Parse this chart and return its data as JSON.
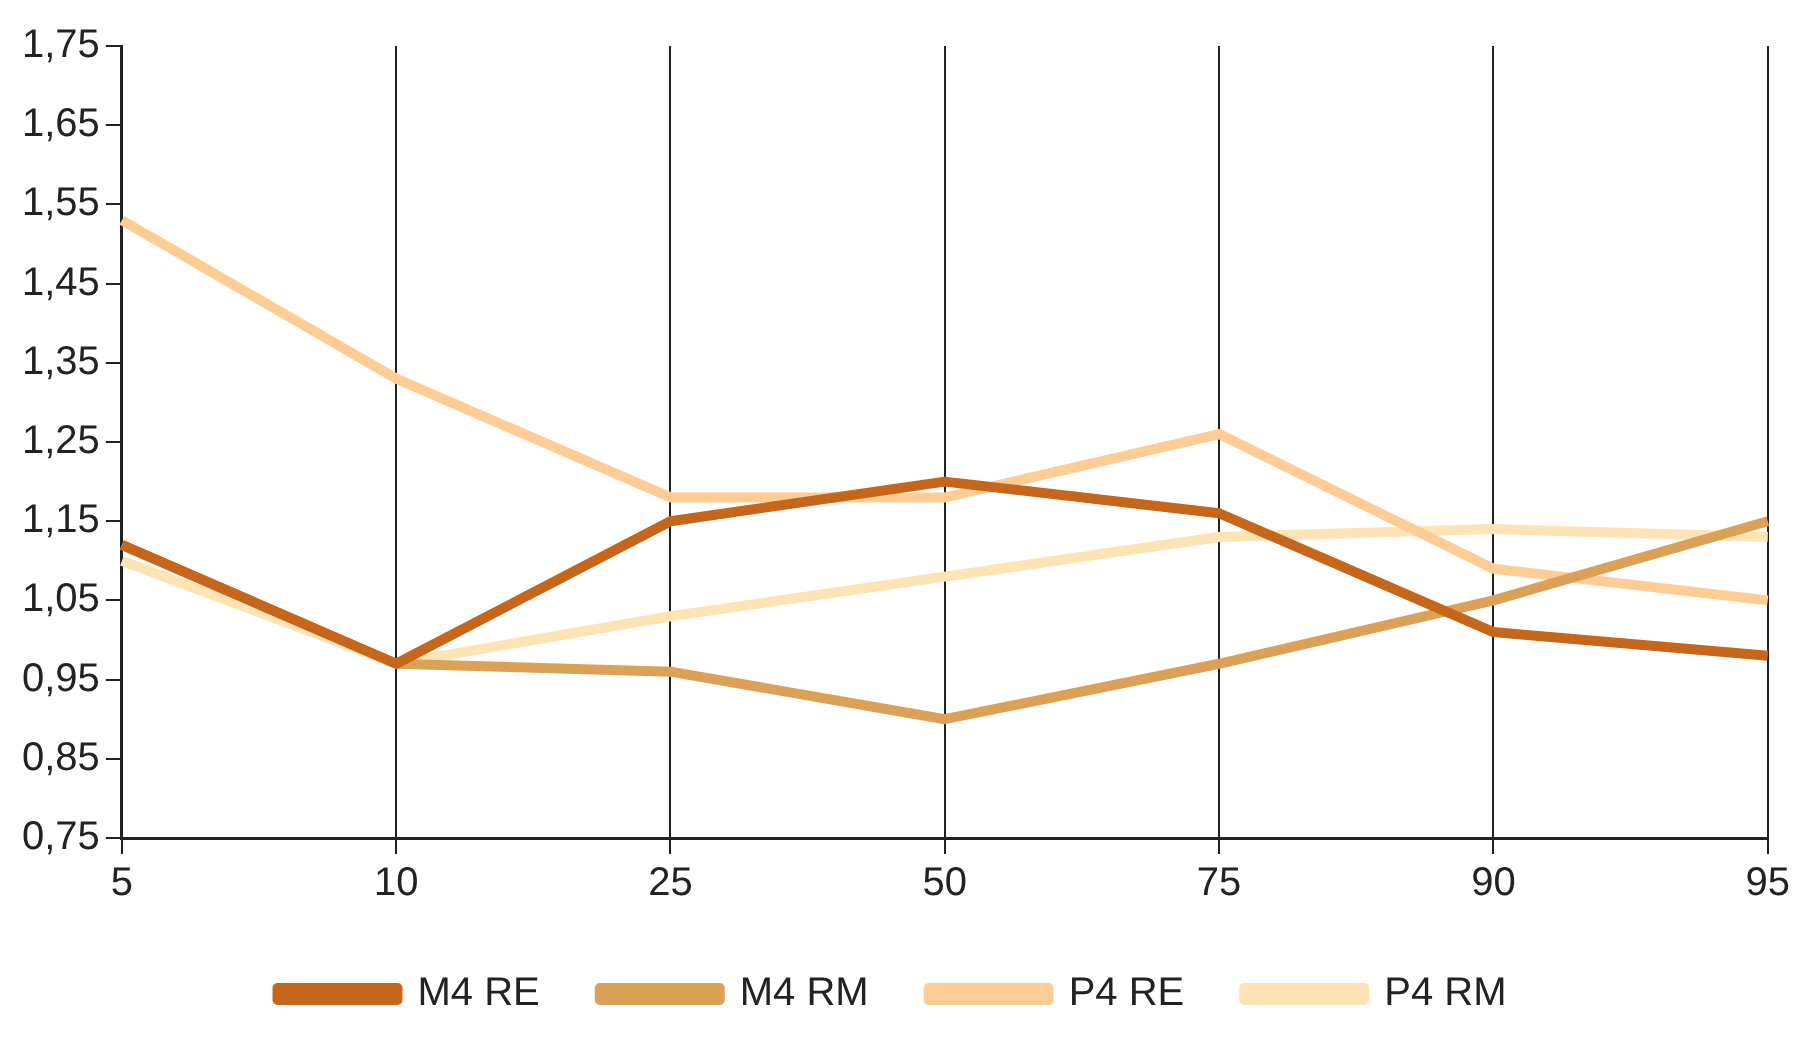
{
  "chart_data": {
    "type": "line",
    "categories": [
      "5",
      "10",
      "25",
      "50",
      "75",
      "90",
      "95"
    ],
    "series": [
      {
        "name": "M4 RE",
        "color": "#c5661a",
        "values": [
          1.12,
          0.97,
          1.15,
          1.2,
          1.16,
          1.01,
          0.98
        ]
      },
      {
        "name": "M4 RM",
        "color": "#dba257",
        "values": [
          1.12,
          0.97,
          0.96,
          0.9,
          0.97,
          1.05,
          1.15
        ]
      },
      {
        "name": "P4 RE",
        "color": "#fecd96",
        "values": [
          1.53,
          1.33,
          1.18,
          1.18,
          1.26,
          1.09,
          1.05
        ]
      },
      {
        "name": "P4 RM",
        "color": "#fee3b4",
        "values": [
          1.1,
          0.97,
          1.03,
          1.08,
          1.13,
          1.14,
          1.13
        ]
      }
    ],
    "ylim": [
      0.75,
      1.75
    ],
    "yticks": [
      {
        "value": 0.75,
        "label": "0,75"
      },
      {
        "value": 0.85,
        "label": "0,85"
      },
      {
        "value": 0.95,
        "label": "0,95"
      },
      {
        "value": 1.05,
        "label": "1,05"
      },
      {
        "value": 1.15,
        "label": "1,15"
      },
      {
        "value": 1.25,
        "label": "1,25"
      },
      {
        "value": 1.35,
        "label": "1,35"
      },
      {
        "value": 1.45,
        "label": "1,45"
      },
      {
        "value": 1.55,
        "label": "1,55"
      },
      {
        "value": 1.65,
        "label": "1,65"
      },
      {
        "value": 1.75,
        "label": "1,75"
      }
    ],
    "grid": "x",
    "legend": "bottom",
    "marker": "none",
    "line_style": "solid"
  }
}
